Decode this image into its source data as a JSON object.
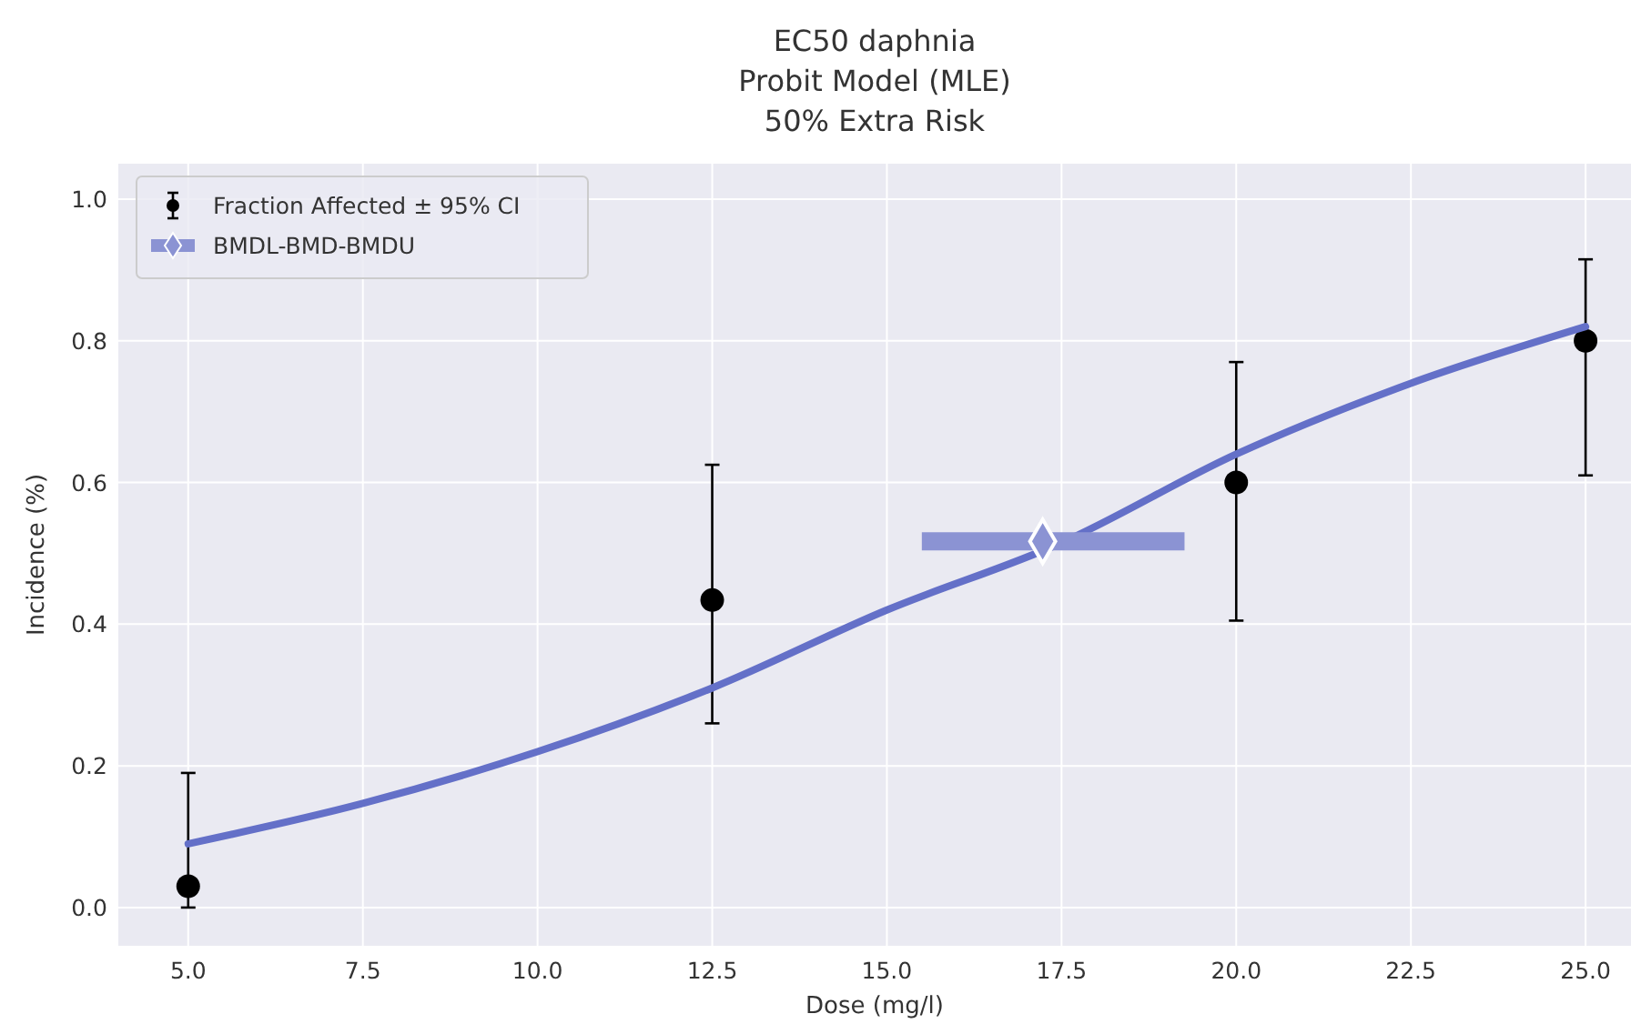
{
  "chart_data": {
    "type": "scatter",
    "title": "EC50 daphnia\nProbit Model (MLE)\n50% Extra Risk",
    "xlabel": "Dose (mg/l)",
    "ylabel": "Incidence (%)",
    "xlim": [
      4,
      25.65
    ],
    "xticks": [
      {
        "value": 5,
        "label": "5.0"
      },
      {
        "value": 7.5,
        "label": "7.5"
      },
      {
        "value": 10,
        "label": "10.0"
      },
      {
        "value": 12.5,
        "label": "12.5"
      },
      {
        "value": 15,
        "label": "15.0"
      },
      {
        "value": 17.5,
        "label": "17.5"
      },
      {
        "value": 20,
        "label": "20.0"
      },
      {
        "value": 22.5,
        "label": "22.5"
      },
      {
        "value": 25,
        "label": "25.0"
      }
    ],
    "ylim": [
      -0.054,
      1.05
    ],
    "yticks": [
      {
        "value": 0,
        "label": "0.0"
      },
      {
        "value": 0.2,
        "label": "0.2"
      },
      {
        "value": 0.4,
        "label": "0.4"
      },
      {
        "value": 0.6,
        "label": "0.6"
      },
      {
        "value": 0.8,
        "label": "0.8"
      },
      {
        "value": 1,
        "label": "1.0"
      }
    ],
    "grid": true,
    "legend": "top left",
    "series": [
      {
        "name": "Fraction Affected ± 95% CI",
        "marker": "circle",
        "color": "#000000",
        "x": [
          5,
          12.5,
          20,
          25
        ],
        "values": [
          0.03,
          0.434,
          0.6,
          0.8
        ],
        "errors": [
          [
            0,
            0.19
          ],
          [
            0.26,
            0.625
          ],
          [
            0.405,
            0.77
          ],
          [
            0.61,
            0.915
          ]
        ]
      },
      {
        "type": "line",
        "marker": "none",
        "color": "#6470c8",
        "x": [
          5,
          7.5,
          10,
          12.5,
          15,
          17.5,
          20,
          22.5,
          25
        ],
        "values": [
          0.09,
          0.147,
          0.22,
          0.31,
          0.42,
          0.515,
          0.64,
          0.74,
          0.82
        ]
      },
      {
        "name": "BMDL-BMD-BMDU",
        "marker": "diamond",
        "color": "#8b93d3",
        "x": [
          17.23
        ],
        "values": [
          0.517
        ],
        "xerrors": [
          [
            15.5,
            19.26
          ]
        ]
      }
    ]
  }
}
